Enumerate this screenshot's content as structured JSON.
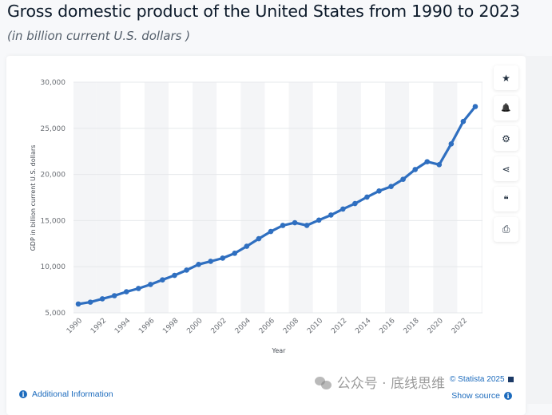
{
  "header": {
    "title": "Gross domestic product of the United States from 1990 to 2023",
    "subtitle": "(in billion current U.S. dollars )"
  },
  "toolbar": {
    "buttons": [
      {
        "name": "favorite",
        "icon": "star-icon",
        "glyph": "★"
      },
      {
        "name": "notification",
        "icon": "bell-icon",
        "glyph": "🔔"
      },
      {
        "name": "settings",
        "icon": "gear-icon",
        "glyph": "⚙"
      },
      {
        "name": "share",
        "icon": "share-icon",
        "glyph": "⋖"
      },
      {
        "name": "cite",
        "icon": "quote-icon",
        "glyph": "❝"
      },
      {
        "name": "print",
        "icon": "print-icon",
        "glyph": "⎙"
      }
    ]
  },
  "footer": {
    "additional_info": "Additional Information",
    "info_glyph": "i",
    "credit": "© Statista 2025",
    "show_source": "Show source",
    "watermark": "公众号 · 底线思维"
  },
  "colors": {
    "line": "#2f6fc0",
    "grid": "#e6e8eb",
    "band": "#f4f5f7",
    "link": "#1c6bbd"
  },
  "chart_data": {
    "type": "line",
    "title": "Gross domestic product of the United States from 1990 to 2023",
    "subtitle": "(in billion current U.S. dollars )",
    "xlabel": "Year",
    "ylabel": "GDP in billion current U.S. dollars",
    "ylim": [
      5000,
      30000
    ],
    "yticks": [
      5000,
      10000,
      15000,
      20000,
      25000,
      30000
    ],
    "ytick_labels": [
      "5,000",
      "10,000",
      "15,000",
      "20,000",
      "25,000",
      "30,000"
    ],
    "xtick_labels": [
      "1990",
      "1992",
      "1994",
      "1996",
      "1998",
      "2000",
      "2002",
      "2004",
      "2006",
      "2008",
      "2010",
      "2012",
      "2014",
      "2016",
      "2018",
      "2020",
      "2022"
    ],
    "grid": true,
    "legend": "none",
    "series": [
      {
        "name": "GDP",
        "x": [
          1990,
          1991,
          1992,
          1993,
          1994,
          1995,
          1996,
          1997,
          1998,
          1999,
          2000,
          2001,
          2002,
          2003,
          2004,
          2005,
          2006,
          2007,
          2008,
          2009,
          2010,
          2011,
          2012,
          2013,
          2014,
          2015,
          2016,
          2017,
          2018,
          2019,
          2020,
          2021,
          2022,
          2023
        ],
        "values": [
          5963,
          6158,
          6520,
          6859,
          7287,
          7640,
          8073,
          8578,
          9063,
          9631,
          10251,
          10582,
          10929,
          11457,
          12217,
          13039,
          13816,
          14474,
          14770,
          14478,
          15049,
          15600,
          16254,
          16843,
          17551,
          18206,
          18695,
          19477,
          20533,
          21381,
          21060,
          23315,
          25744,
          27361
        ]
      }
    ]
  }
}
